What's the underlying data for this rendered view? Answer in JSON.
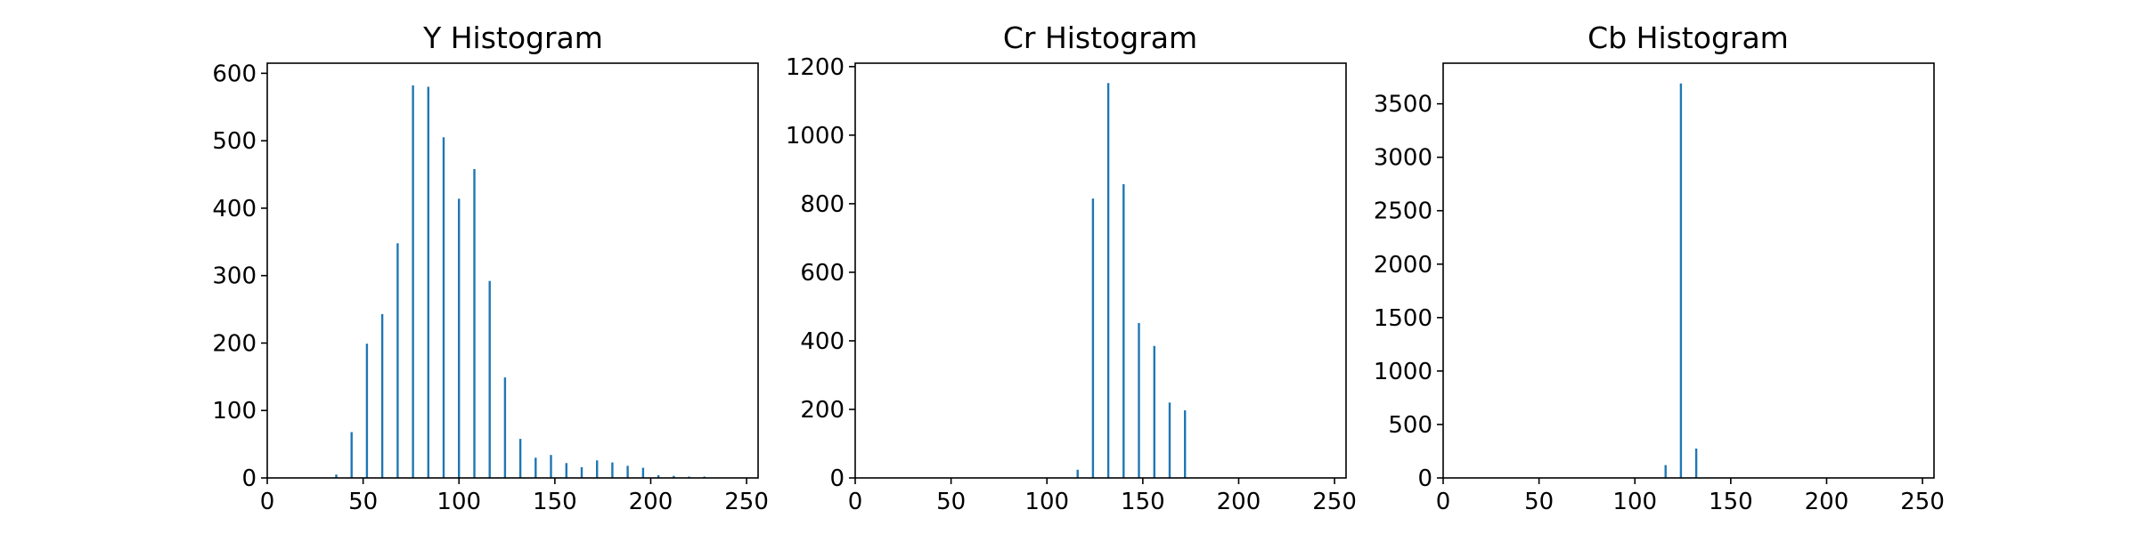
{
  "colors": {
    "bar": "#1f77b4",
    "axes": "#000000",
    "background": "#ffffff"
  },
  "chart_data": [
    {
      "type": "bar",
      "title": "Y Histogram",
      "xlabel": "",
      "ylabel": "",
      "xlim": [
        0,
        256
      ],
      "ylim": [
        0,
        615
      ],
      "xticks": [
        0,
        50,
        100,
        150,
        200,
        250
      ],
      "xtick_labels": [
        "0",
        "50",
        "100",
        "150",
        "200",
        "250"
      ],
      "yticks": [
        0,
        100,
        200,
        300,
        400,
        500,
        600
      ],
      "ytick_labels": [
        "0",
        "100",
        "200",
        "300",
        "400",
        "500",
        "600"
      ],
      "grid": false,
      "bars": [
        {
          "x": 36,
          "y": 5
        },
        {
          "x": 44,
          "y": 68
        },
        {
          "x": 52,
          "y": 199
        },
        {
          "x": 60,
          "y": 243
        },
        {
          "x": 68,
          "y": 348
        },
        {
          "x": 76,
          "y": 582
        },
        {
          "x": 84,
          "y": 580
        },
        {
          "x": 92,
          "y": 505
        },
        {
          "x": 100,
          "y": 414
        },
        {
          "x": 108,
          "y": 458
        },
        {
          "x": 116,
          "y": 292
        },
        {
          "x": 124,
          "y": 149
        },
        {
          "x": 132,
          "y": 58
        },
        {
          "x": 140,
          "y": 30
        },
        {
          "x": 148,
          "y": 34
        },
        {
          "x": 156,
          "y": 22
        },
        {
          "x": 164,
          "y": 16
        },
        {
          "x": 172,
          "y": 26
        },
        {
          "x": 180,
          "y": 23
        },
        {
          "x": 188,
          "y": 18
        },
        {
          "x": 196,
          "y": 15
        },
        {
          "x": 204,
          "y": 4
        },
        {
          "x": 212,
          "y": 3
        },
        {
          "x": 220,
          "y": 2
        },
        {
          "x": 228,
          "y": 2
        }
      ]
    },
    {
      "type": "bar",
      "title": "Cr Histogram",
      "xlabel": "",
      "ylabel": "",
      "xlim": [
        0,
        256
      ],
      "ylim": [
        0,
        1210
      ],
      "xticks": [
        0,
        50,
        100,
        150,
        200,
        250
      ],
      "xtick_labels": [
        "0",
        "50",
        "100",
        "150",
        "200",
        "250"
      ],
      "yticks": [
        0,
        200,
        400,
        600,
        800,
        1000,
        1200
      ],
      "ytick_labels": [
        "0",
        "200",
        "400",
        "600",
        "800",
        "1000",
        "1200"
      ],
      "grid": false,
      "bars": [
        {
          "x": 116,
          "y": 24
        },
        {
          "x": 124,
          "y": 815
        },
        {
          "x": 132,
          "y": 1152
        },
        {
          "x": 140,
          "y": 857
        },
        {
          "x": 148,
          "y": 452
        },
        {
          "x": 156,
          "y": 385
        },
        {
          "x": 164,
          "y": 220
        },
        {
          "x": 172,
          "y": 197
        }
      ]
    },
    {
      "type": "bar",
      "title": "Cb Histogram",
      "xlabel": "",
      "ylabel": "",
      "xlim": [
        0,
        256
      ],
      "ylim": [
        0,
        3880
      ],
      "xticks": [
        0,
        50,
        100,
        150,
        200,
        250
      ],
      "xtick_labels": [
        "0",
        "50",
        "100",
        "150",
        "200",
        "250"
      ],
      "yticks": [
        0,
        500,
        1000,
        1500,
        2000,
        2500,
        3000,
        3500
      ],
      "ytick_labels": [
        "0",
        "500",
        "1000",
        "1500",
        "2000",
        "2500",
        "3000",
        "3500"
      ],
      "grid": false,
      "bars": [
        {
          "x": 116,
          "y": 120
        },
        {
          "x": 124,
          "y": 3690
        },
        {
          "x": 132,
          "y": 275
        }
      ]
    }
  ]
}
